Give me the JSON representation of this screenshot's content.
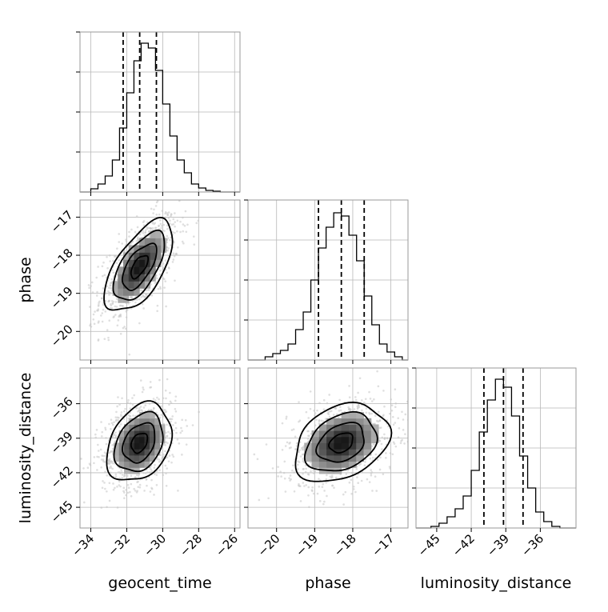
{
  "chart_data": {
    "type": "corner",
    "parameters": [
      "geocent_time",
      "phase",
      "luminosity_distance"
    ],
    "axis_labels": [
      "geocent_time",
      "phase",
      "luminosity_distance"
    ],
    "grid": true,
    "style": {
      "histogram_color": "#000000",
      "quantile_line_color": "#000000",
      "scatter_color": "#bdbdbd",
      "density_colormap": [
        "#ffffff",
        "#000000"
      ]
    },
    "diagonal": [
      {
        "parameter": "geocent_time",
        "xlim": [
          -34.6,
          -25.7
        ],
        "xticks": [
          -34,
          -32,
          -30,
          -28,
          -26
        ],
        "tick_labels": [
          "−34",
          "−32",
          "−30",
          "−28",
          "−26"
        ],
        "ylim": [
          0,
          1.0
        ],
        "yticks": [
          0.25,
          0.5,
          0.75,
          1.0
        ],
        "quantiles": [
          -32.2,
          -31.28,
          -30.35
        ],
        "bins": [
          -34.0,
          -33.6,
          -33.2,
          -32.8,
          -32.4,
          -32.0,
          -31.6,
          -31.2,
          -30.8,
          -30.4,
          -30.0,
          -29.6,
          -29.2,
          -28.8,
          -28.4,
          -28.0,
          -27.6,
          -27.2,
          -26.8
        ],
        "counts": [
          0.02,
          0.05,
          0.1,
          0.2,
          0.4,
          0.62,
          0.82,
          0.93,
          0.9,
          0.76,
          0.55,
          0.35,
          0.2,
          0.12,
          0.05,
          0.025,
          0.01,
          0.005
        ]
      },
      {
        "parameter": "phase",
        "xlim": [
          -20.75,
          -16.55
        ],
        "xticks": [
          -20,
          -19,
          -18,
          -17
        ],
        "tick_labels": [
          "−20",
          "−19",
          "−18",
          "−17"
        ],
        "ylim": [
          0,
          1.0
        ],
        "yticks": [
          0.25,
          0.5,
          0.75,
          1.0
        ],
        "quantiles": [
          -18.9,
          -18.3,
          -17.7
        ],
        "bins": [
          -20.3,
          -20.1,
          -19.9,
          -19.7,
          -19.5,
          -19.3,
          -19.1,
          -18.9,
          -18.7,
          -18.5,
          -18.3,
          -18.1,
          -17.9,
          -17.7,
          -17.5,
          -17.3,
          -17.1,
          -16.9,
          -16.7
        ],
        "counts": [
          0.02,
          0.04,
          0.06,
          0.1,
          0.19,
          0.3,
          0.5,
          0.7,
          0.83,
          0.92,
          0.9,
          0.78,
          0.62,
          0.4,
          0.22,
          0.1,
          0.05,
          0.02
        ]
      },
      {
        "parameter": "luminosity_distance",
        "xlim": [
          -46.8,
          -32.9
        ],
        "xticks": [
          -45,
          -42,
          -39,
          -36
        ],
        "tick_labels": [
          "−45",
          "−42",
          "−39",
          "−36"
        ],
        "ylim": [
          0,
          1.0
        ],
        "yticks": [
          0.25,
          0.5,
          0.75,
          1.0
        ],
        "quantiles": [
          -40.9,
          -39.2,
          -37.5
        ],
        "bins": [
          -45.5,
          -44.8,
          -44.1,
          -43.4,
          -42.7,
          -42.0,
          -41.3,
          -40.6,
          -39.9,
          -39.2,
          -38.5,
          -37.8,
          -37.1,
          -36.4,
          -35.7,
          -35.0,
          -34.3
        ],
        "counts": [
          0.01,
          0.03,
          0.07,
          0.12,
          0.2,
          0.36,
          0.6,
          0.8,
          0.93,
          0.88,
          0.7,
          0.45,
          0.25,
          0.1,
          0.04,
          0.01
        ]
      }
    ],
    "pairs": [
      {
        "x": "geocent_time",
        "y": "phase",
        "xlim": [
          -34.6,
          -25.7
        ],
        "ylim": [
          -20.75,
          -16.55
        ],
        "xticks": [
          -34,
          -32,
          -30,
          -28,
          -26
        ],
        "yticks": [
          -20,
          -19,
          -18,
          -17
        ],
        "ytick_labels": [
          "−20",
          "−19",
          "−18",
          "−17"
        ],
        "center": [
          -31.3,
          -18.3
        ],
        "sigma": [
          0.95,
          0.6
        ],
        "rho": 0.62,
        "contour_levels_sigma": [
          0.5,
          1.0,
          1.5,
          2.0
        ]
      },
      {
        "x": "geocent_time",
        "y": "luminosity_distance",
        "xlim": [
          -34.6,
          -25.7
        ],
        "ylim": [
          -46.8,
          -32.9
        ],
        "xticks": [
          -34,
          -32,
          -30,
          -28,
          -26
        ],
        "yticks": [
          -45,
          -42,
          -39,
          -36
        ],
        "ytick_labels": [
          "−45",
          "−42",
          "−39",
          "−36"
        ],
        "center": [
          -31.3,
          -39.4
        ],
        "sigma": [
          0.9,
          1.7
        ],
        "rho": 0.3,
        "contour_levels_sigma": [
          0.5,
          1.0,
          1.5,
          2.0
        ]
      },
      {
        "x": "phase",
        "y": "luminosity_distance",
        "xlim": [
          -20.75,
          -16.55
        ],
        "ylim": [
          -46.8,
          -32.9
        ],
        "xticks": [
          -20,
          -19,
          -18,
          -17
        ],
        "yticks": [
          -45,
          -42,
          -39,
          -36
        ],
        "ytick_labels": [
          "−45",
          "−42",
          "−39",
          "−36"
        ],
        "center": [
          -18.3,
          -39.4
        ],
        "sigma": [
          0.62,
          1.7
        ],
        "rho": 0.3,
        "contour_levels_sigma": [
          0.5,
          1.0,
          1.5,
          2.0
        ]
      }
    ]
  }
}
